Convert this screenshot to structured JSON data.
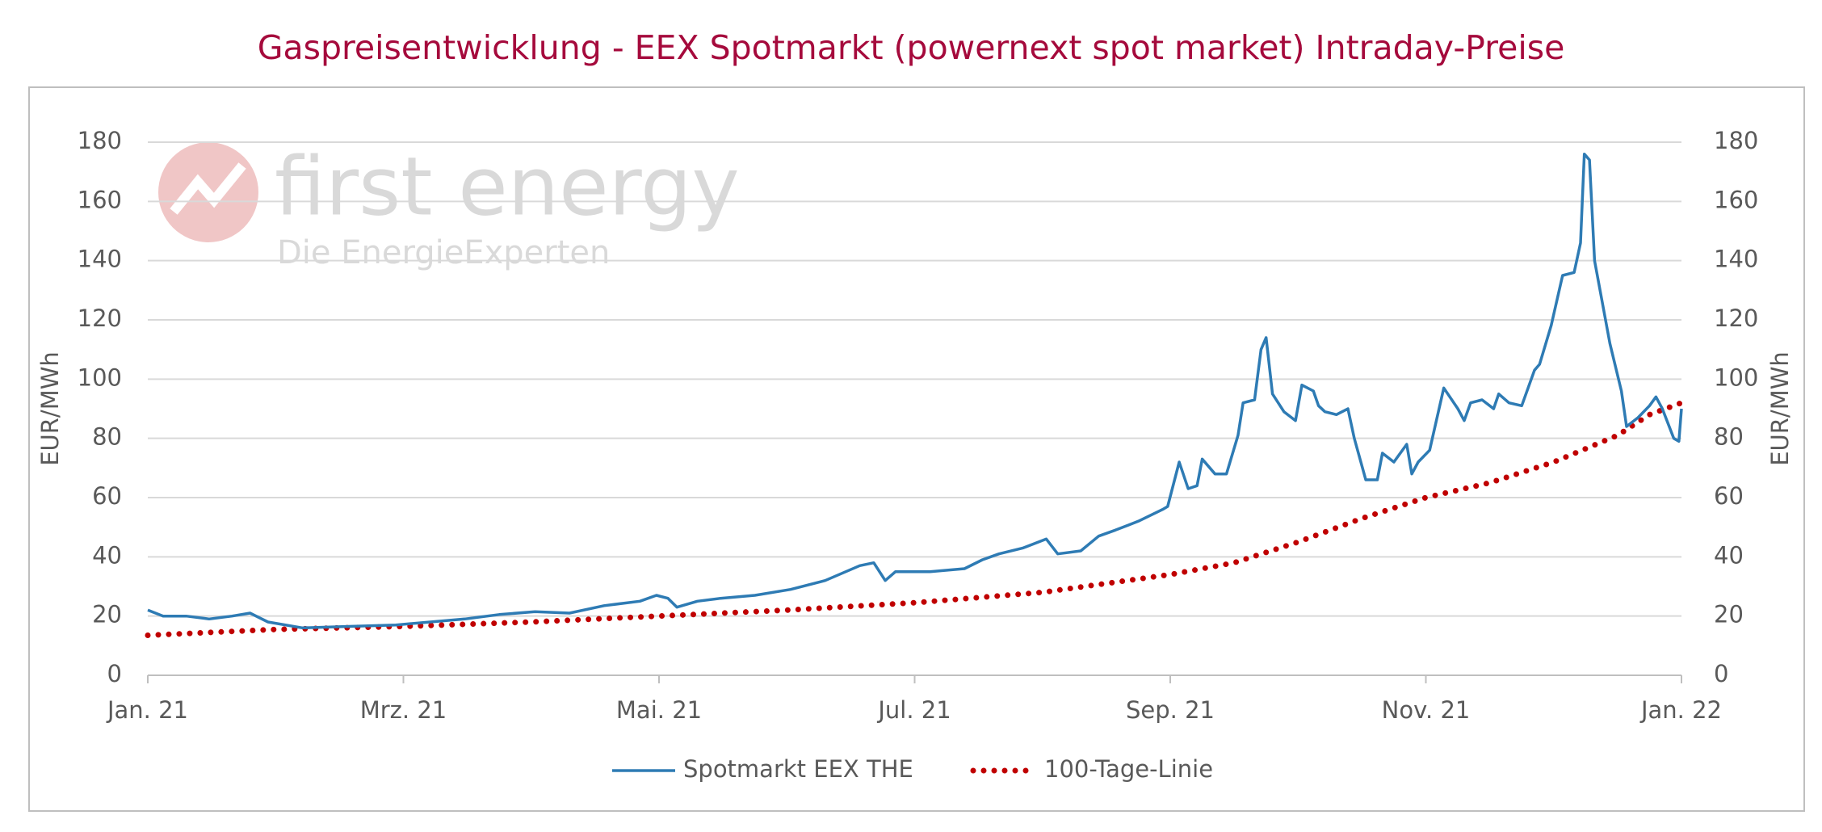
{
  "chart_data": {
    "type": "line",
    "title": "Gaspreisentwicklung - EEX Spotmarkt (powernext spot market) Intraday-Preise",
    "watermark": {
      "brand": "first energy",
      "tagline": "Die EnergieExperten"
    },
    "y_label": "EUR/MWh",
    "y2_label": "EUR/MWh",
    "xlim": [
      0,
      12
    ],
    "xticks": [
      {
        "value": 0,
        "label": "Jan. 21"
      },
      {
        "value": 2,
        "label": "Mrz. 21"
      },
      {
        "value": 4,
        "label": "Mai. 21"
      },
      {
        "value": 6,
        "label": "Jul. 21"
      },
      {
        "value": 8,
        "label": "Sep. 21"
      },
      {
        "value": 10,
        "label": "Nov. 21"
      },
      {
        "value": 12,
        "label": "Jan. 22"
      }
    ],
    "ylim": [
      0,
      180
    ],
    "yticks": [
      0,
      20,
      40,
      60,
      80,
      100,
      120,
      140,
      160,
      180
    ],
    "y2lim": [
      0,
      180
    ],
    "y2ticks": [
      0,
      20,
      40,
      60,
      80,
      100,
      120,
      140,
      160,
      180
    ],
    "grid": true,
    "legend": "bottom",
    "series": [
      {
        "name": "Spotmarkt EEX THE",
        "color": "#2e7bb4",
        "style": "solid",
        "x": [
          0,
          0.12,
          0.3,
          0.48,
          0.66,
          0.8,
          0.94,
          1.21,
          1.57,
          1.94,
          2.21,
          2.48,
          2.75,
          3.03,
          3.3,
          3.57,
          3.85,
          3.98,
          4.07,
          4.14,
          4.3,
          4.48,
          4.75,
          5.03,
          5.3,
          5.57,
          5.68,
          5.77,
          5.85,
          6.12,
          6.39,
          6.53,
          6.66,
          6.85,
          7.03,
          7.12,
          7.3,
          7.44,
          7.57,
          7.75,
          7.94,
          7.98,
          8.07,
          8.14,
          8.21,
          8.25,
          8.35,
          8.44,
          8.53,
          8.57,
          8.66,
          8.71,
          8.75,
          8.8,
          8.89,
          8.98,
          9.03,
          9.12,
          9.16,
          9.21,
          9.3,
          9.39,
          9.44,
          9.53,
          9.62,
          9.66,
          9.75,
          9.85,
          9.89,
          9.94,
          10.03,
          10.14,
          10.25,
          10.3,
          10.35,
          10.44,
          10.53,
          10.57,
          10.65,
          10.75,
          10.8,
          10.85,
          10.89,
          10.98,
          11.07,
          11.16,
          11.21,
          11.24,
          11.28,
          11.32,
          11.44,
          11.53,
          11.57,
          11.66,
          11.75,
          11.8,
          11.85,
          11.94,
          11.98,
          12
        ],
        "values": [
          22,
          20,
          20,
          19,
          20,
          21,
          18,
          16,
          16.5,
          17,
          18,
          19,
          20.5,
          21.5,
          21,
          23.5,
          25,
          27,
          26,
          23,
          25,
          26,
          27,
          29,
          32,
          37,
          38,
          32,
          35,
          35,
          36,
          39,
          41,
          43,
          46,
          41,
          42,
          47,
          49,
          52,
          56,
          57,
          72,
          63,
          64,
          73,
          68,
          68,
          81,
          92,
          93,
          110,
          114,
          95,
          89,
          86,
          98,
          96,
          91,
          89,
          88,
          90,
          80,
          66,
          66,
          75,
          72,
          78,
          68,
          72,
          76,
          97,
          90,
          86,
          92,
          93,
          90,
          95,
          92,
          91,
          97,
          103,
          105,
          118,
          135,
          136,
          146,
          176,
          174,
          140,
          112,
          96,
          84,
          87,
          91,
          94,
          90,
          80,
          79,
          90
        ]
      },
      {
        "name": "100-Tage-Linie",
        "color": "#c00000",
        "style": "dotted",
        "x": [
          0,
          1,
          2,
          3,
          4,
          5,
          6,
          7,
          8,
          8.5,
          9,
          9.5,
          10,
          10.5,
          11,
          11.5,
          11.75,
          12
        ],
        "values": [
          13.5,
          15.5,
          16.5,
          18,
          20,
          22,
          24.5,
          28,
          34,
          38,
          45,
          53,
          60,
          65,
          72,
          81,
          88,
          92
        ]
      }
    ]
  }
}
